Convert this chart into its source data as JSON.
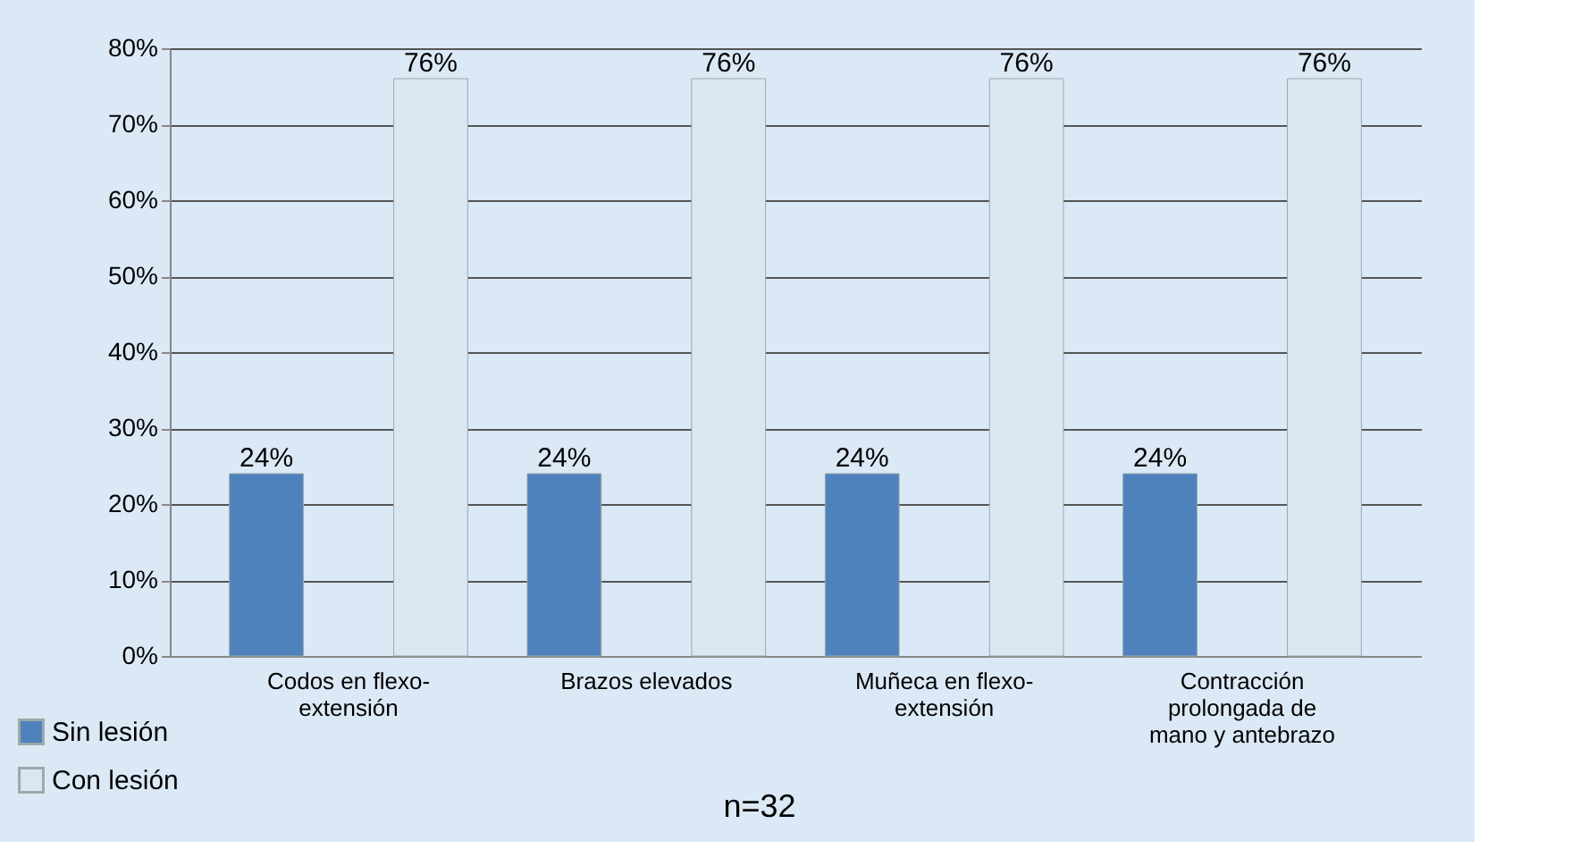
{
  "chart_data": {
    "type": "bar",
    "categories": [
      "Codos en flexo-extensión",
      "Brazos elevados",
      "Muñeca en flexo-extensión",
      "Contracción prolongada de mano y antebrazo"
    ],
    "series": [
      {
        "name": "Sin lesión",
        "color": "#4f81bd",
        "values": [
          24,
          24,
          24,
          24
        ],
        "value_labels": [
          "24%",
          "24%",
          "24%",
          "24%"
        ]
      },
      {
        "name": "Con lesión",
        "color": "#dce6f2",
        "values": [
          76,
          76,
          76,
          76
        ],
        "value_labels": [
          "76%",
          "76%",
          "76%",
          "76%"
        ]
      }
    ],
    "ylim": [
      0,
      80
    ],
    "yticks": [
      {
        "value": 0,
        "label": "0%"
      },
      {
        "value": 10,
        "label": "10%"
      },
      {
        "value": 20,
        "label": "20%"
      },
      {
        "value": 30,
        "label": "30%"
      },
      {
        "value": 40,
        "label": "40%"
      },
      {
        "value": 50,
        "label": "50%"
      },
      {
        "value": 60,
        "label": "60%"
      },
      {
        "value": 70,
        "label": "70%"
      },
      {
        "value": 80,
        "label": "80%"
      }
    ],
    "grid": "y",
    "legend": "bottom left",
    "annotations": [
      "n=32"
    ]
  }
}
